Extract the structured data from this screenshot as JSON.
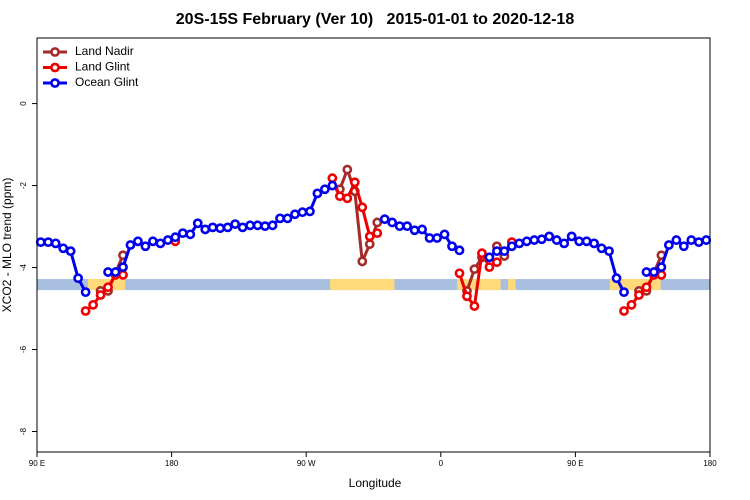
{
  "chart_data": {
    "type": "line",
    "title": "20S-15S February (Ver 10)   2015-01-01 to 2020-12-18",
    "x_label": "Longitude",
    "y_label": "XCO2 - MLO trend (ppm)",
    "xlim": [
      90,
      540
    ],
    "ylim": [
      -8.5,
      1.6
    ],
    "xticks": [
      {
        "value": 90,
        "label": "90 E"
      },
      180,
      {
        "value": 270,
        "label": "90 W"
      },
      {
        "value": 360,
        "label": "0"
      },
      {
        "value": 450,
        "label": "90 E"
      },
      {
        "value": 540,
        "label": "180"
      }
    ],
    "yticks": [
      0,
      -2,
      -4,
      -6,
      -8
    ],
    "legend": "top-left",
    "surface_band": {
      "y": [
        -4.28,
        -4.55
      ],
      "ocean_color": "#a8bfdf",
      "land_color": "#ffd97a",
      "land": [
        [
          124,
          149
        ],
        [
          286,
          329
        ],
        [
          371,
          400
        ],
        [
          405,
          410
        ],
        [
          473,
          507
        ]
      ]
    },
    "x": [
      92.5,
      97.5,
      102.5,
      107.5,
      112.5,
      117.5,
      122.5,
      127.5,
      132.5,
      137.5,
      142.5,
      147.5,
      152.5,
      157.5,
      162.5,
      167.5,
      172.5,
      177.5,
      182.5,
      187.5,
      192.5,
      197.5,
      202.5,
      207.5,
      212.5,
      217.5,
      222.5,
      227.5,
      232.5,
      237.5,
      242.5,
      247.5,
      252.5,
      257.5,
      262.5,
      267.5,
      272.5,
      277.5,
      282.5,
      287.5,
      292.5,
      297.5,
      302.5,
      307.5,
      312.5,
      317.5,
      322.5,
      327.5,
      332.5,
      337.5,
      342.5,
      347.5,
      352.5,
      357.5,
      362.5,
      367.5,
      372.5,
      377.5,
      382.5,
      387.5,
      392.5,
      397.5,
      402.5,
      407.5,
      412.5,
      417.5,
      422.5,
      427.5,
      432.5,
      437.5,
      442.5,
      447.5,
      452.5,
      457.5,
      462.5,
      467.5,
      472.5,
      477.5,
      482.5,
      487.5,
      492.5,
      497.5,
      502.5,
      507.5,
      512.5,
      517.5,
      522.5,
      527.5,
      532.5,
      537.5
    ],
    "series": [
      {
        "name": "Land Nadir",
        "color": "#a52a2a",
        "values": [
          null,
          null,
          null,
          null,
          null,
          null,
          null,
          null,
          -4.57,
          -4.57,
          -4.13,
          -3.7,
          null,
          null,
          null,
          null,
          null,
          null,
          null,
          null,
          null,
          null,
          null,
          null,
          null,
          null,
          null,
          null,
          null,
          null,
          null,
          null,
          null,
          null,
          null,
          null,
          null,
          null,
          null,
          null,
          -2.09,
          -1.61,
          -2.14,
          -3.85,
          -3.43,
          -2.9,
          null,
          null,
          null,
          null,
          null,
          null,
          null,
          null,
          null,
          null,
          null,
          -4.57,
          -4.04,
          -3.75,
          null,
          -3.48,
          -3.72,
          null,
          null,
          null,
          null,
          null,
          null,
          null,
          null,
          null,
          null,
          null,
          null,
          null,
          null,
          null,
          null,
          null,
          -4.57,
          -4.57,
          -4.13,
          -3.7,
          null,
          null,
          null,
          null,
          null,
          null
        ]
      },
      {
        "name": "Land Glint",
        "color": "#ee0000",
        "values": [
          null,
          null,
          null,
          null,
          null,
          null,
          -5.06,
          -4.91,
          -4.67,
          -4.48,
          -4.18,
          -4.18,
          null,
          null,
          null,
          null,
          null,
          null,
          -3.36,
          null,
          null,
          null,
          null,
          null,
          null,
          null,
          null,
          null,
          null,
          null,
          null,
          null,
          null,
          null,
          null,
          null,
          null,
          null,
          null,
          -1.82,
          -2.26,
          -2.31,
          -1.92,
          -2.53,
          -3.24,
          -3.16,
          null,
          null,
          null,
          null,
          null,
          null,
          null,
          null,
          null,
          null,
          -4.14,
          -4.7,
          -4.94,
          -3.65,
          -3.99,
          -3.87,
          null,
          -3.38,
          null,
          null,
          null,
          null,
          null,
          null,
          null,
          null,
          null,
          null,
          null,
          null,
          null,
          null,
          -5.06,
          -4.91,
          -4.67,
          -4.48,
          -4.18,
          -4.18,
          null,
          null,
          null,
          null,
          null,
          null
        ]
      },
      {
        "name": "Ocean Glint",
        "color": "#0000ee",
        "values": [
          -3.38,
          -3.38,
          -3.41,
          -3.53,
          -3.6,
          -4.26,
          -4.6,
          null,
          null,
          -4.11,
          -4.11,
          -3.99,
          -3.45,
          -3.36,
          -3.48,
          -3.36,
          -3.41,
          -3.33,
          -3.26,
          -3.16,
          -3.19,
          -2.92,
          -3.07,
          -3.02,
          -3.04,
          -3.02,
          -2.94,
          -3.02,
          -2.97,
          -2.97,
          -2.99,
          -2.97,
          -2.8,
          -2.8,
          -2.7,
          -2.65,
          -2.63,
          -2.19,
          -2.09,
          -2.0,
          null,
          null,
          null,
          null,
          null,
          null,
          -2.82,
          -2.9,
          -2.99,
          -2.99,
          -3.09,
          -3.07,
          -3.28,
          -3.28,
          -3.19,
          -3.48,
          -3.58,
          null,
          null,
          null,
          -3.75,
          -3.6,
          -3.6,
          -3.48,
          -3.41,
          -3.36,
          -3.33,
          -3.31,
          -3.24,
          -3.33,
          -3.41,
          -3.24,
          -3.36,
          -3.36,
          -3.41,
          -3.53,
          -3.6,
          -4.26,
          -4.6,
          null,
          null,
          -4.11,
          -4.11,
          -3.99,
          -3.45,
          -3.33,
          -3.48,
          -3.33,
          -3.38,
          -3.33
        ]
      }
    ]
  }
}
